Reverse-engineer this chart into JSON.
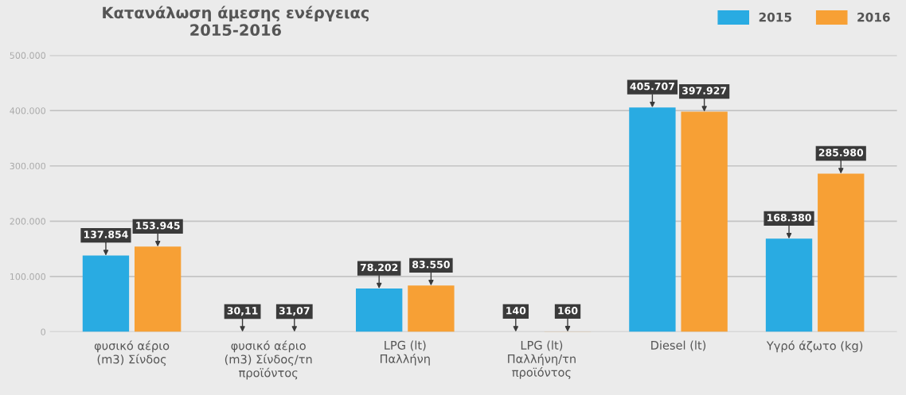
{
  "chart_data": {
    "type": "bar",
    "title": "Κατανάλωση άμεσης ενέργειας\n2015-2016",
    "categories": [
      "φυσικό αέριο\n(m3) Σίνδος",
      "φυσικό αέριο\n(m3) Σίνδος/τn\nπροϊόντος",
      "LPG (lt)\nΠαλλήνη",
      "LPG (lt)\nΠαλλήνη/τn\nπροϊόντος",
      "Diesel (lt)",
      "Υγρό άζωτο (kg)"
    ],
    "series": [
      {
        "name": "2015",
        "color": "#29abe2",
        "values": [
          137854,
          30.11,
          78202,
          140,
          405707,
          168380
        ],
        "value_labels": [
          "137.854",
          "30,11",
          "78.202",
          "140",
          "405.707",
          "168.380"
        ]
      },
      {
        "name": "2016",
        "color": "#f7a035",
        "values": [
          153945,
          31.07,
          83550,
          160,
          397927,
          285980
        ],
        "value_labels": [
          "153.945",
          "31,07",
          "83.550",
          "160",
          "397.927",
          "285.980"
        ]
      }
    ],
    "ylim": [
      0,
      500000
    ],
    "yticks": [
      {
        "value": 0,
        "label": "0"
      },
      {
        "value": 100000,
        "label": "100.000"
      },
      {
        "value": 200000,
        "label": "200.000"
      },
      {
        "value": 300000,
        "label": "300.000"
      },
      {
        "value": 400000,
        "label": "400.000"
      },
      {
        "value": 500000,
        "label": "500.000"
      }
    ],
    "grid": "y",
    "legend": "top right"
  }
}
